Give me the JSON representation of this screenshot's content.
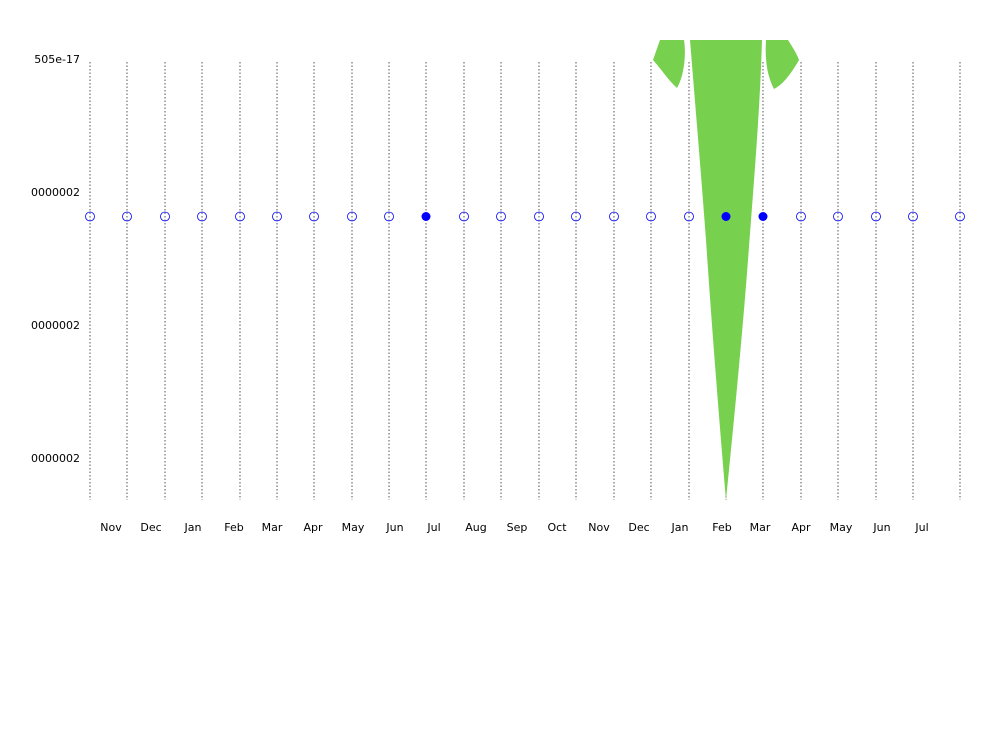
{
  "chart_data": {
    "type": "scatter",
    "title": "",
    "xlabel": "",
    "ylabel": "",
    "grid": "vertical dotted lines at each x position",
    "colors": {
      "marker": "#0000ff",
      "area": "#77d14f",
      "grid": "#555555"
    },
    "y_tick_labels": [
      "505e-17",
      "0000002",
      "0000002",
      "0000002"
    ],
    "x_tick_labels": [
      "Nov",
      "Dec",
      "Jan",
      "Feb",
      "Mar",
      "Apr",
      "May",
      "Jun",
      "Jul",
      "Aug",
      "Sep",
      "Oct",
      "Nov",
      "Dec",
      "Jan",
      "Feb",
      "Mar",
      "Apr",
      "May",
      "Jun",
      "Jul"
    ],
    "points": [
      {
        "x": "Oct",
        "filled": false
      },
      {
        "x": "Nov",
        "filled": false
      },
      {
        "x": "Dec",
        "filled": false
      },
      {
        "x": "Jan",
        "filled": false
      },
      {
        "x": "Feb",
        "filled": false
      },
      {
        "x": "Mar",
        "filled": false
      },
      {
        "x": "Apr",
        "filled": false
      },
      {
        "x": "May",
        "filled": false
      },
      {
        "x": "Jun",
        "filled": false
      },
      {
        "x": "Jul",
        "filled": true
      },
      {
        "x": "Aug",
        "filled": false
      },
      {
        "x": "Sep",
        "filled": false
      },
      {
        "x": "Oct",
        "filled": false
      },
      {
        "x": "Nov",
        "filled": false
      },
      {
        "x": "Dec",
        "filled": false
      },
      {
        "x": "Jan",
        "filled": false
      },
      {
        "x": "Feb",
        "filled": false
      },
      {
        "x": "Mar",
        "filled": true
      },
      {
        "x": "Apr",
        "filled": true
      },
      {
        "x": "May",
        "filled": false
      },
      {
        "x": "Jun",
        "filled": false
      },
      {
        "x": "Jul",
        "filled": false
      },
      {
        "x": "Aug",
        "filled": false
      },
      {
        "x": "Sep",
        "filled": false
      }
    ]
  }
}
